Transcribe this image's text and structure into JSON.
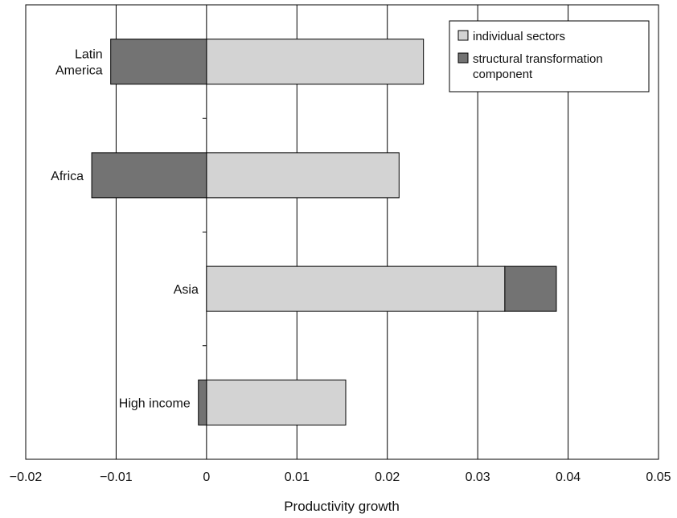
{
  "chart_data": {
    "type": "bar",
    "orientation": "horizontal",
    "stacked": true,
    "categories": [
      "Latin America",
      "Africa",
      "Asia",
      "High income"
    ],
    "category_lines": [
      [
        "Latin",
        "America"
      ],
      [
        "Africa"
      ],
      [
        "Asia"
      ],
      [
        "High income"
      ]
    ],
    "series": [
      {
        "name": "individual sectors",
        "values": [
          0.024,
          0.0213,
          0.033,
          0.0154
        ],
        "color": "#d3d3d3"
      },
      {
        "name": "structural transformation component",
        "values": [
          -0.0106,
          -0.0127,
          0.0057,
          -0.0009
        ],
        "color": "#737373"
      }
    ],
    "legend_lines": [
      [
        "individual sectors"
      ],
      [
        "structural transformation",
        "component"
      ]
    ],
    "xlabel": "Productivity growth",
    "ylabel": "",
    "xlim": [
      -0.02,
      0.05
    ],
    "xticks": [
      -0.02,
      -0.01,
      0,
      0.01,
      0.02,
      0.03,
      0.04,
      0.05
    ],
    "xtick_labels": [
      "−0.02",
      "−0.01",
      "0",
      "0.01",
      "0.02",
      "0.03",
      "0.04",
      "0.05"
    ],
    "grid": "vertical",
    "legend_position": "top-right"
  }
}
